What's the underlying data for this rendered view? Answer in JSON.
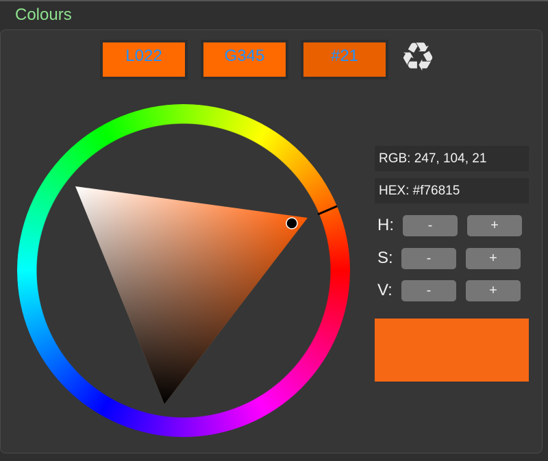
{
  "title": "Colours",
  "codes": [
    {
      "label": "L022",
      "color": "#ff6a00"
    },
    {
      "label": "G345",
      "color": "#ff6a00"
    },
    {
      "label": "#21",
      "color": "#e86000"
    }
  ],
  "recycle_icon": "recycle-icon",
  "rgb_text": "RGB: 247, 104, 21",
  "hex_text": "HEX: #f76815",
  "controls": [
    {
      "label": "H:",
      "minus": "-",
      "plus": "+"
    },
    {
      "label": "S:",
      "minus": "-",
      "plus": "+"
    },
    {
      "label": "V:",
      "minus": "-",
      "plus": "+"
    }
  ],
  "selected_color": "#f76815",
  "hue_color": "#ff5a00"
}
